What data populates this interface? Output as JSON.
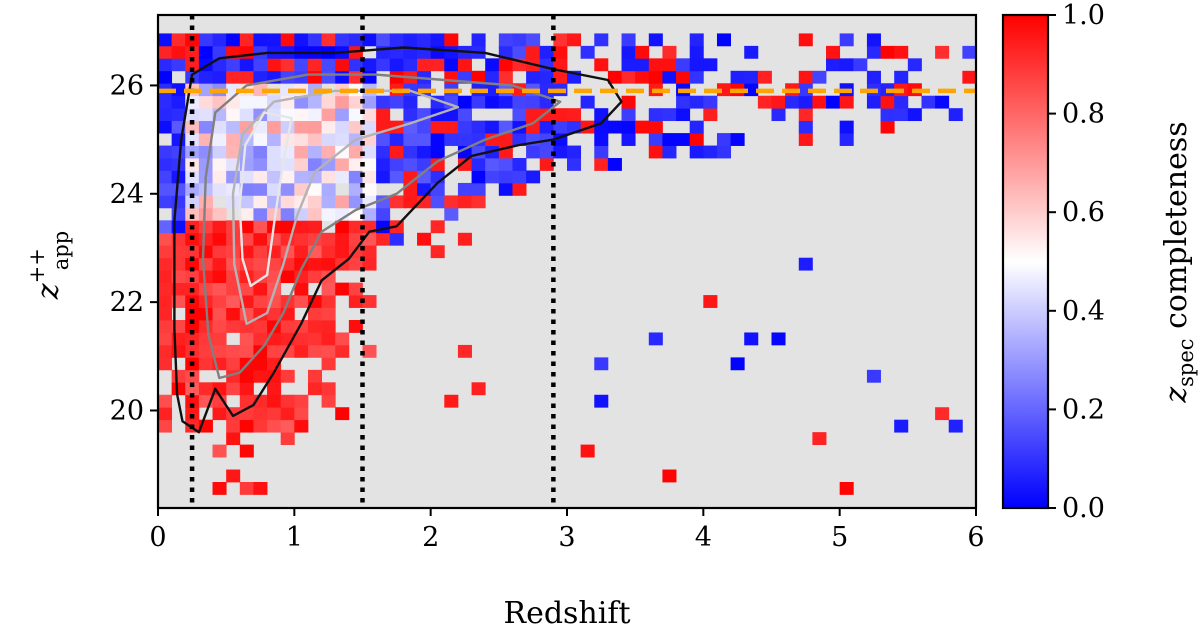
{
  "chart_data": {
    "type": "heatmap",
    "xlabel": "Redshift",
    "ylabel": {
      "base": "z",
      "superscript": "++",
      "subscript": "app"
    },
    "xlim": [
      0,
      6
    ],
    "ylim": [
      18.2,
      27.3
    ],
    "x_ticks": [
      "0",
      "1",
      "2",
      "3",
      "4",
      "5",
      "6"
    ],
    "x_tick_values": [
      0,
      1,
      2,
      3,
      4,
      5,
      6
    ],
    "y_ticks": [
      "20",
      "22",
      "24",
      "26"
    ],
    "y_tick_values": [
      20,
      22,
      24,
      26
    ],
    "colorbar": {
      "label": {
        "base": "z",
        "subscript": "spec",
        "rest": " completeness"
      },
      "range": [
        0,
        1
      ],
      "ticks": [
        "0.0",
        "0.2",
        "0.4",
        "0.6",
        "0.8",
        "1.0"
      ],
      "tick_values": [
        0.0,
        0.2,
        0.4,
        0.6,
        0.8,
        1.0
      ],
      "colormap": "bwr",
      "colors": {
        "low": "#0000ff",
        "mid": "#ffffff",
        "high": "#ff0000"
      }
    },
    "background_color": "#e3e3e3",
    "vertical_lines": [
      {
        "x": 0.25,
        "style": "dotted",
        "color": "#000000"
      },
      {
        "x": 1.5,
        "style": "dotted",
        "color": "#000000"
      },
      {
        "x": 2.9,
        "style": "dotted",
        "color": "#000000"
      }
    ],
    "horizontal_lines": [
      {
        "y": 25.9,
        "style": "dashed",
        "color": "#ffa500"
      }
    ],
    "contours": [
      {
        "color": "#111111",
        "level": "outer",
        "points": [
          [
            0.18,
            19.8
          ],
          [
            0.3,
            19.6
          ],
          [
            0.42,
            20.4
          ],
          [
            0.55,
            19.9
          ],
          [
            0.7,
            20.1
          ],
          [
            0.85,
            20.7
          ],
          [
            1.05,
            21.6
          ],
          [
            1.2,
            22.4
          ],
          [
            1.4,
            22.8
          ],
          [
            1.55,
            23.3
          ],
          [
            1.75,
            23.4
          ],
          [
            2.05,
            24.2
          ],
          [
            2.3,
            24.7
          ],
          [
            2.65,
            24.9
          ],
          [
            2.9,
            25.0
          ],
          [
            3.25,
            25.3
          ],
          [
            3.4,
            25.7
          ],
          [
            3.3,
            26.1
          ],
          [
            2.9,
            26.3
          ],
          [
            2.4,
            26.6
          ],
          [
            1.8,
            26.7
          ],
          [
            1.3,
            26.6
          ],
          [
            0.8,
            26.6
          ],
          [
            0.45,
            26.5
          ],
          [
            0.25,
            26.2
          ],
          [
            0.17,
            25.0
          ],
          [
            0.12,
            23.5
          ],
          [
            0.12,
            21.5
          ],
          [
            0.14,
            20.3
          ]
        ]
      },
      {
        "color": "#808080",
        "level": "middle",
        "points": [
          [
            0.45,
            20.6
          ],
          [
            0.6,
            20.7
          ],
          [
            0.78,
            21.2
          ],
          [
            0.92,
            21.8
          ],
          [
            1.05,
            22.6
          ],
          [
            1.2,
            23.3
          ],
          [
            1.45,
            23.7
          ],
          [
            1.75,
            24.0
          ],
          [
            2.05,
            24.6
          ],
          [
            2.4,
            25.0
          ],
          [
            2.75,
            25.3
          ],
          [
            2.95,
            25.7
          ],
          [
            2.6,
            26.0
          ],
          [
            2.1,
            26.1
          ],
          [
            1.6,
            26.2
          ],
          [
            1.1,
            26.2
          ],
          [
            0.65,
            26.0
          ],
          [
            0.42,
            25.5
          ],
          [
            0.35,
            24.3
          ],
          [
            0.33,
            22.8
          ],
          [
            0.37,
            21.4
          ]
        ]
      },
      {
        "color": "#b4b4b4",
        "level": "inner",
        "points": [
          [
            0.65,
            21.6
          ],
          [
            0.8,
            21.8
          ],
          [
            0.92,
            22.7
          ],
          [
            1.02,
            23.6
          ],
          [
            1.15,
            24.4
          ],
          [
            1.45,
            25.0
          ],
          [
            1.85,
            25.3
          ],
          [
            2.2,
            25.6
          ],
          [
            1.85,
            25.9
          ],
          [
            1.3,
            25.9
          ],
          [
            0.85,
            25.7
          ],
          [
            0.62,
            25.1
          ],
          [
            0.55,
            24.0
          ],
          [
            0.56,
            22.7
          ]
        ]
      },
      {
        "color": "#e6e6e6",
        "level": "core",
        "points": [
          [
            0.68,
            22.3
          ],
          [
            0.8,
            22.5
          ],
          [
            0.86,
            23.6
          ],
          [
            0.92,
            24.6
          ],
          [
            0.98,
            25.4
          ],
          [
            0.78,
            25.5
          ],
          [
            0.64,
            24.9
          ],
          [
            0.6,
            23.8
          ],
          [
            0.62,
            22.8
          ]
        ]
      }
    ]
  }
}
